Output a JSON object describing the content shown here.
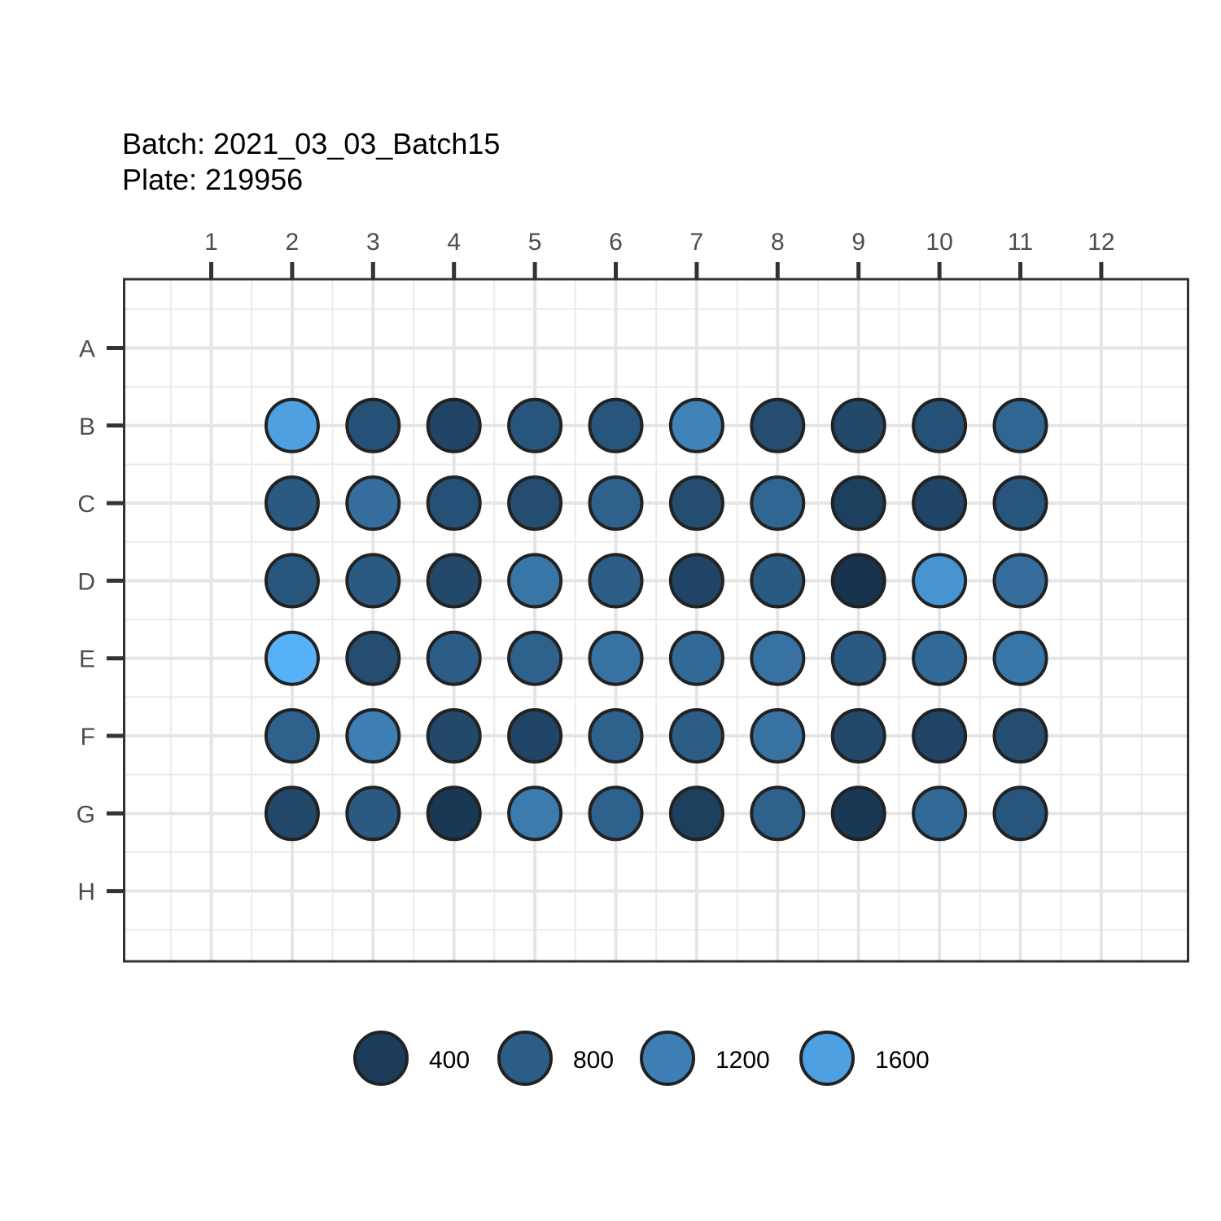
{
  "chart_data": {
    "type": "scatter",
    "title_lines": [
      "Batch: 2021_03_03_Batch15",
      "Plate: 219956"
    ],
    "columns": [
      "1",
      "2",
      "3",
      "4",
      "5",
      "6",
      "7",
      "8",
      "9",
      "10",
      "11",
      "12"
    ],
    "rows": [
      "A",
      "B",
      "C",
      "D",
      "E",
      "F",
      "G",
      "H"
    ],
    "x_axis_position": "top",
    "y_axis_reversed": true,
    "grid": true,
    "legend_position": "bottom",
    "color_scale": {
      "low": "#132B43",
      "high": "#56B1F7",
      "domain": [
        200,
        1800
      ]
    },
    "legend": {
      "breaks": [
        400,
        800,
        1200,
        1600
      ],
      "labels": [
        "400",
        "800",
        "1200",
        "1600"
      ]
    },
    "points": [
      {
        "row": "B",
        "col": 2,
        "value": 1600
      },
      {
        "row": "B",
        "col": 3,
        "value": 650
      },
      {
        "row": "B",
        "col": 4,
        "value": 500
      },
      {
        "row": "B",
        "col": 5,
        "value": 700
      },
      {
        "row": "B",
        "col": 6,
        "value": 700
      },
      {
        "row": "B",
        "col": 7,
        "value": 1250
      },
      {
        "row": "B",
        "col": 8,
        "value": 600
      },
      {
        "row": "B",
        "col": 9,
        "value": 550
      },
      {
        "row": "B",
        "col": 10,
        "value": 650
      },
      {
        "row": "B",
        "col": 11,
        "value": 900
      },
      {
        "row": "C",
        "col": 2,
        "value": 750
      },
      {
        "row": "C",
        "col": 3,
        "value": 1000
      },
      {
        "row": "C",
        "col": 4,
        "value": 650
      },
      {
        "row": "C",
        "col": 5,
        "value": 600
      },
      {
        "row": "C",
        "col": 6,
        "value": 850
      },
      {
        "row": "C",
        "col": 7,
        "value": 600
      },
      {
        "row": "C",
        "col": 8,
        "value": 900
      },
      {
        "row": "C",
        "col": 9,
        "value": 450
      },
      {
        "row": "C",
        "col": 10,
        "value": 500
      },
      {
        "row": "C",
        "col": 11,
        "value": 700
      },
      {
        "row": "D",
        "col": 2,
        "value": 700
      },
      {
        "row": "D",
        "col": 3,
        "value": 750
      },
      {
        "row": "D",
        "col": 4,
        "value": 550
      },
      {
        "row": "D",
        "col": 5,
        "value": 1100
      },
      {
        "row": "D",
        "col": 6,
        "value": 800
      },
      {
        "row": "D",
        "col": 7,
        "value": 500
      },
      {
        "row": "D",
        "col": 8,
        "value": 750
      },
      {
        "row": "D",
        "col": 9,
        "value": 300
      },
      {
        "row": "D",
        "col": 10,
        "value": 1450
      },
      {
        "row": "D",
        "col": 11,
        "value": 1000
      },
      {
        "row": "E",
        "col": 2,
        "value": 1800
      },
      {
        "row": "E",
        "col": 3,
        "value": 600
      },
      {
        "row": "E",
        "col": 4,
        "value": 800
      },
      {
        "row": "E",
        "col": 5,
        "value": 850
      },
      {
        "row": "E",
        "col": 6,
        "value": 1050
      },
      {
        "row": "E",
        "col": 7,
        "value": 950
      },
      {
        "row": "E",
        "col": 8,
        "value": 1050
      },
      {
        "row": "E",
        "col": 9,
        "value": 750
      },
      {
        "row": "E",
        "col": 10,
        "value": 950
      },
      {
        "row": "E",
        "col": 11,
        "value": 1100
      },
      {
        "row": "F",
        "col": 2,
        "value": 850
      },
      {
        "row": "F",
        "col": 3,
        "value": 1200
      },
      {
        "row": "F",
        "col": 4,
        "value": 550
      },
      {
        "row": "F",
        "col": 5,
        "value": 500
      },
      {
        "row": "F",
        "col": 6,
        "value": 850
      },
      {
        "row": "F",
        "col": 7,
        "value": 800
      },
      {
        "row": "F",
        "col": 8,
        "value": 1050
      },
      {
        "row": "F",
        "col": 9,
        "value": 550
      },
      {
        "row": "F",
        "col": 10,
        "value": 500
      },
      {
        "row": "F",
        "col": 11,
        "value": 600
      },
      {
        "row": "G",
        "col": 2,
        "value": 550
      },
      {
        "row": "G",
        "col": 3,
        "value": 750
      },
      {
        "row": "G",
        "col": 4,
        "value": 350
      },
      {
        "row": "G",
        "col": 5,
        "value": 1150
      },
      {
        "row": "G",
        "col": 6,
        "value": 850
      },
      {
        "row": "G",
        "col": 7,
        "value": 450
      },
      {
        "row": "G",
        "col": 8,
        "value": 850
      },
      {
        "row": "G",
        "col": 9,
        "value": 350
      },
      {
        "row": "G",
        "col": 10,
        "value": 950
      },
      {
        "row": "G",
        "col": 11,
        "value": 700
      }
    ]
  }
}
